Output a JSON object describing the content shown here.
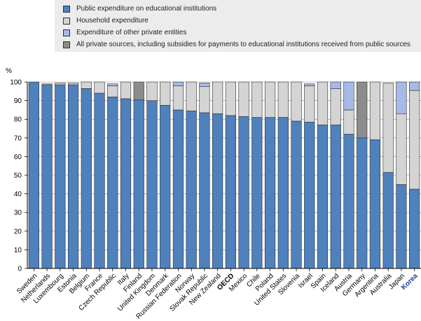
{
  "legend": {
    "items": [
      {
        "label": "Public expenditure on educational institutions",
        "color": "#4f81bd"
      },
      {
        "label": "Household expenditure",
        "color": "#d4d4d4"
      },
      {
        "label": "Expenditure of other private entities",
        "color": "#a7b9e6"
      },
      {
        "label": "All private sources, including subsidies for payments to educational institutions received from public sources",
        "color": "#8c8c8c"
      }
    ]
  },
  "chart_data": {
    "type": "bar",
    "stacked": true,
    "ylabel": "%",
    "ylim": [
      0,
      100
    ],
    "yticks": [
      0,
      10,
      20,
      30,
      40,
      50,
      60,
      70,
      80,
      90,
      100
    ],
    "highlight_colors": {
      "OECD": "#000000",
      "Korea": "#1f3a93"
    },
    "categories": [
      "Sweden",
      "Netherlands",
      "Luxembourg",
      "Estonia",
      "Belgium",
      "France",
      "Czech Republic",
      "Italy",
      "Finland",
      "United Kingdom",
      "Denmark",
      "Russian Federation",
      "Norway",
      "Slovak Republic",
      "New Zealand",
      "OECD",
      "Mexico",
      "Chile",
      "Poland",
      "United States",
      "Slovenia",
      "Israel",
      "Spain",
      "Iceland",
      "Austria",
      "Germany",
      "Argentina",
      "Australia",
      "Japan",
      "Korea"
    ],
    "series": [
      {
        "name": "Public expenditure on educational institutions",
        "values": [
          100,
          98.5,
          98.5,
          98.5,
          96.5,
          94,
          92,
          91,
          90.5,
          90,
          87.5,
          85,
          84.5,
          83.5,
          83,
          82,
          81.5,
          81,
          81,
          81,
          79,
          78.5,
          77,
          77,
          72,
          70,
          69,
          51.5,
          45,
          42.5
        ]
      },
      {
        "name": "Household expenditure",
        "values": [
          0,
          0.5,
          1,
          1,
          3.5,
          6,
          6,
          9,
          0,
          10,
          12.5,
          13,
          15.5,
          14,
          17,
          18,
          18.5,
          19,
          19,
          19,
          21,
          19.5,
          23,
          19.5,
          13,
          0,
          31,
          48,
          38,
          53
        ]
      },
      {
        "name": "Expenditure of other private entities",
        "values": [
          0,
          0,
          0,
          0,
          0,
          0,
          1,
          0,
          0,
          0,
          0,
          2,
          0,
          2,
          0,
          0,
          0,
          0,
          0,
          0,
          0,
          1,
          0,
          3.5,
          15,
          0,
          0,
          0,
          17,
          4.5
        ]
      },
      {
        "name": "All private sources, including subsidies for payments to educational institutions received from public sources",
        "values": [
          0,
          0,
          0,
          0,
          0,
          0,
          0,
          0,
          9.5,
          0,
          0,
          0,
          0,
          0,
          0,
          0,
          0,
          0,
          0,
          0,
          0,
          0,
          0,
          0,
          0,
          30,
          0,
          0,
          0,
          0
        ]
      }
    ]
  }
}
